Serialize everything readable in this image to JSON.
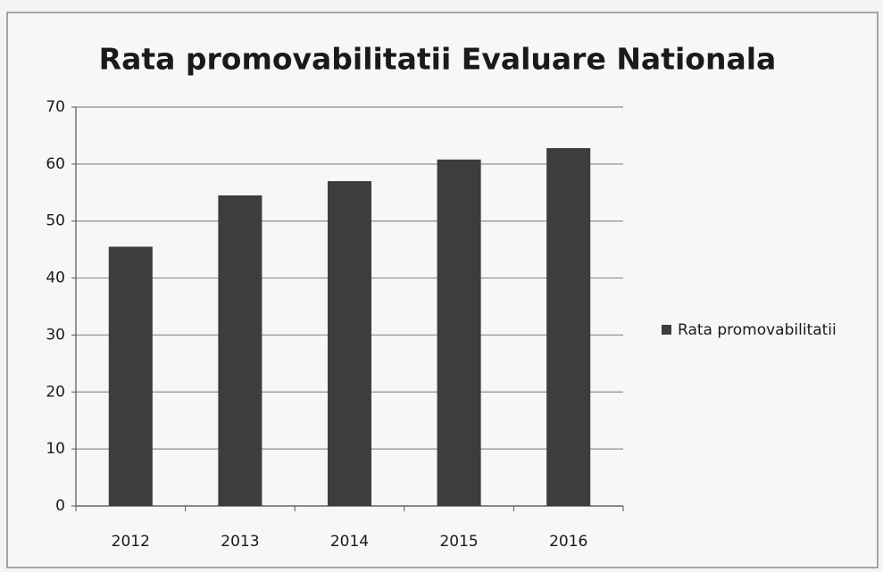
{
  "chart_data": {
    "type": "bar",
    "title": "Rata promovabilitatii Evaluare Nationala",
    "categories": [
      "2012",
      "2013",
      "2014",
      "2015",
      "2016"
    ],
    "series": [
      {
        "name": "Rata promovabilitatii",
        "color": "#3d3d3f",
        "values": [
          45.5,
          54.5,
          57,
          60.8,
          62.8
        ]
      }
    ],
    "ylim": [
      0,
      70
    ],
    "yticks": [
      0,
      10,
      20,
      30,
      40,
      50,
      60,
      70
    ],
    "grid": true,
    "legend": "right"
  }
}
